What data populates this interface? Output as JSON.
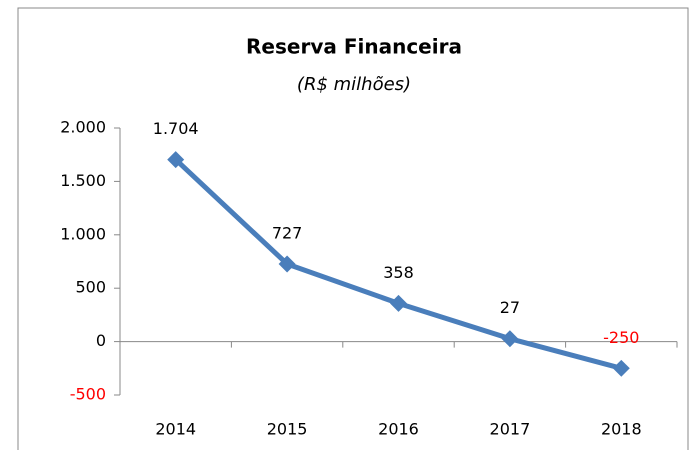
{
  "chart_data": {
    "type": "line",
    "title": "Reserva Financeira",
    "subtitle": "(R$ milhões)",
    "categories": [
      "2014",
      "2015",
      "2016",
      "2017",
      "2018"
    ],
    "series": [
      {
        "name": "Reserva Financeira",
        "color": "#4a7ebb",
        "values": [
          1704,
          727,
          358,
          27,
          -250
        ],
        "value_labels": [
          "1.704",
          "727",
          "358",
          "27",
          "-250"
        ]
      }
    ],
    "ylim": [
      -500,
      2000
    ],
    "yticks": [
      {
        "value": 2000,
        "label": "2.000"
      },
      {
        "value": 1500,
        "label": "1.500"
      },
      {
        "value": 1000,
        "label": "1.000"
      },
      500,
      0,
      -500
    ],
    "negative_color": "#ff0000"
  }
}
